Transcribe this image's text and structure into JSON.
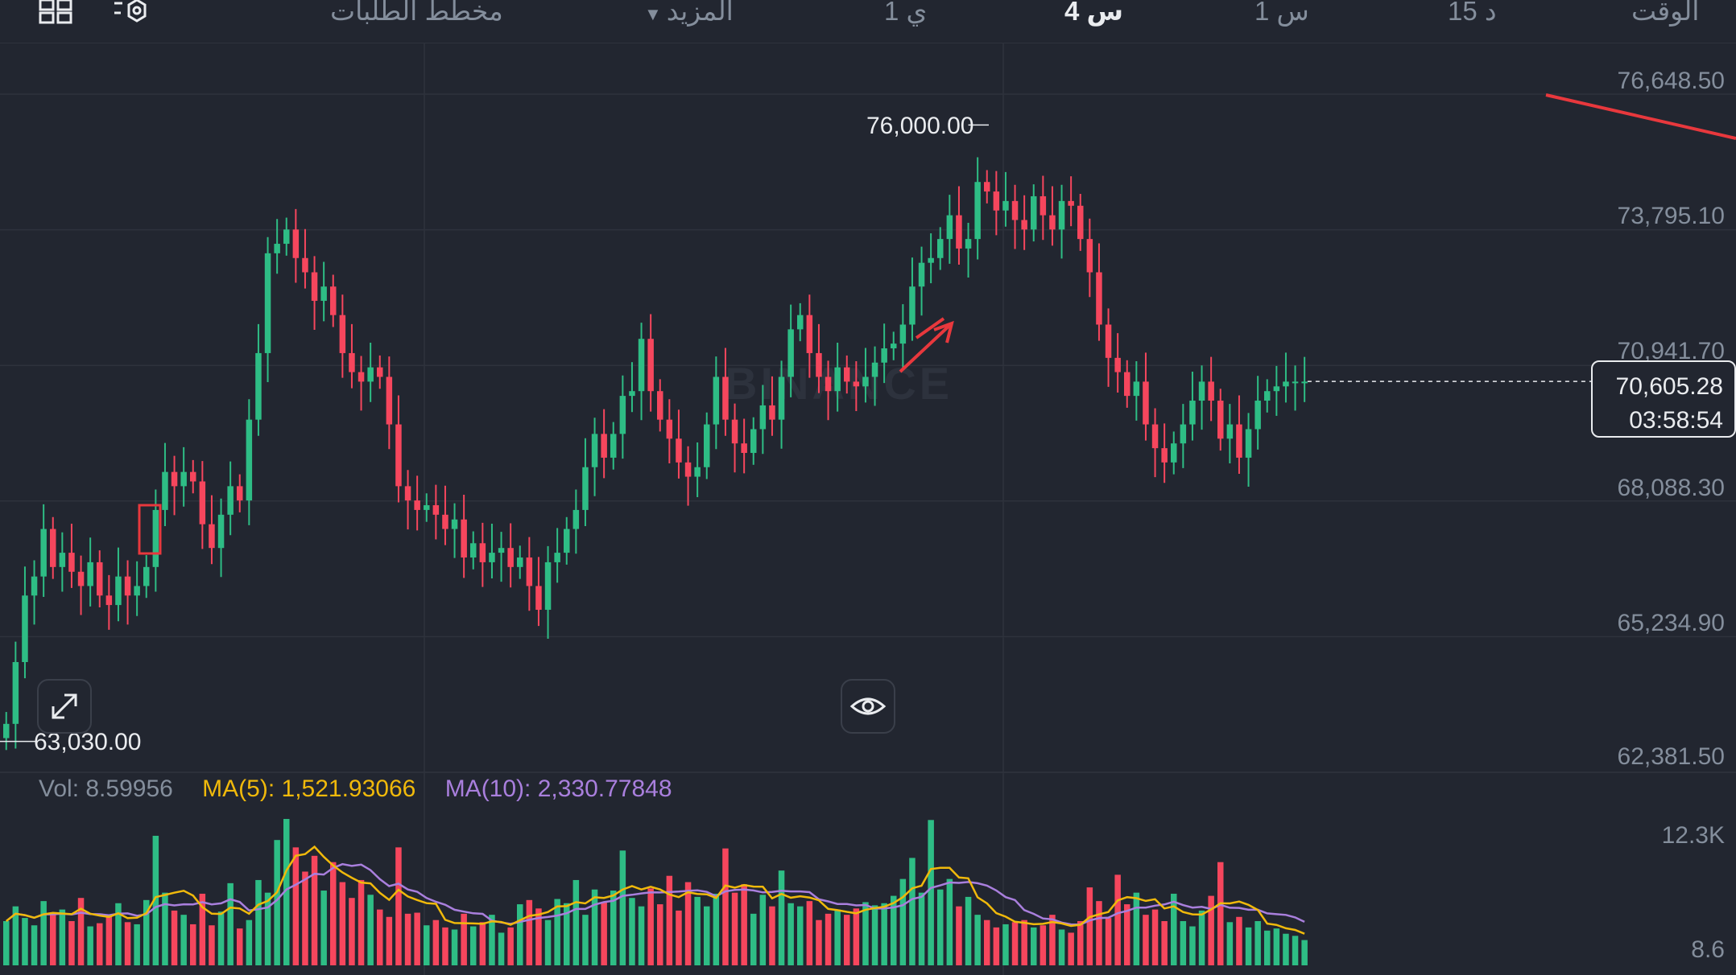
{
  "toolbar": {
    "intervals": [
      {
        "label": "الوقت",
        "active": false
      },
      {
        "label": "15 د",
        "active": false
      },
      {
        "label": "1 س",
        "active": false
      },
      {
        "label": "4 س",
        "active": true
      },
      {
        "label": "1 ي",
        "active": false
      }
    ],
    "more_label": "المزيد",
    "depth_label": "مخطط الطلبات",
    "icons": [
      "indicator-settings-icon",
      "layout-grid-icon"
    ]
  },
  "watermark": "BINANCE",
  "chart_data": {
    "type": "candlestick",
    "price_axis_ticks": [
      "76,648.50",
      "73,795.10",
      "70,941.70",
      "68,088.30",
      "65,234.90",
      "62,381.50"
    ],
    "price_axis_values": [
      76648.5,
      73795.1,
      70941.7,
      68088.3,
      65234.9,
      62381.5
    ],
    "current_price": "70,605.28",
    "countdown": "03:58:54",
    "high_annotation": "76,000.00",
    "low_annotation": "63,030.00",
    "closes": [
      63400,
      64700,
      66100,
      66500,
      67500,
      66700,
      67000,
      66600,
      66300,
      66800,
      66100,
      65900,
      66500,
      66100,
      66300,
      66700,
      67900,
      68700,
      68400,
      68700,
      68500,
      67600,
      67100,
      67800,
      68400,
      68100,
      69800,
      71200,
      73300,
      73500,
      73800,
      73200,
      72900,
      72300,
      72600,
      72000,
      71200,
      70800,
      70600,
      70900,
      70700,
      69700,
      68400,
      68100,
      67900,
      68000,
      67800,
      67500,
      67700,
      66900,
      67200,
      66800,
      67000,
      67100,
      66700,
      66900,
      66300,
      65800,
      66800,
      67000,
      67500,
      67900,
      68800,
      69500,
      69000,
      69500,
      70300,
      70400,
      71500,
      70400,
      69800,
      69400,
      68900,
      68600,
      68800,
      69700,
      70700,
      69800,
      69300,
      69100,
      69600,
      70100,
      69800,
      70700,
      71700,
      72000,
      71200,
      70700,
      70400,
      70900,
      70600,
      70500,
      70700,
      71000,
      71300,
      71400,
      71800,
      72600,
      73100,
      73200,
      73600,
      74100,
      73400,
      73600,
      74800,
      74600,
      74200,
      74400,
      74000,
      73800,
      74500,
      74100,
      73800,
      74400,
      74300,
      73600,
      72900,
      71800,
      71100,
      70800,
      70300,
      70600,
      69700,
      69200,
      68900,
      69300,
      69700,
      70200,
      70600,
      70200,
      69400,
      69700,
      69000,
      69600,
      70200,
      70400,
      70500,
      70600,
      70600,
      70600
    ]
  },
  "volume": {
    "vol_label": "Vol: 8.59956",
    "ma5_label": "MA(5): 1,521.93066",
    "ma10_label": "MA(10): 2,330.77848",
    "ticks": [
      "12.3K",
      "8.6"
    ],
    "volumes": [
      4200,
      5600,
      4500,
      3800,
      6100,
      4900,
      5300,
      4200,
      6400,
      3700,
      4000,
      4700,
      5900,
      4100,
      3900,
      6200,
      12300,
      6900,
      5200,
      4800,
      3900,
      6800,
      3800,
      5100,
      7800,
      3500,
      4300,
      8100,
      6900,
      11900,
      13900,
      11200,
      8900,
      10400,
      7100,
      9800,
      7900,
      6400,
      8100,
      6700,
      5300,
      4600,
      11200,
      4900,
      5000,
      3800,
      4300,
      3600,
      3400,
      4900,
      3700,
      4100,
      4800,
      3100,
      3600,
      5800,
      6200,
      5400,
      4300,
      6300,
      5900,
      8100,
      4800,
      7200,
      6000,
      7100,
      10900,
      6400,
      5600,
      7300,
      5800,
      8500,
      5200,
      7900,
      6500,
      5600,
      6800,
      11100,
      6900,
      7700,
      4900,
      6700,
      5600,
      9000,
      5900,
      5600,
      6100,
      4300,
      4900,
      5300,
      4800,
      5400,
      6000,
      5700,
      5900,
      6600,
      8200,
      10200,
      6900,
      13800,
      7200,
      8200,
      5600,
      6500,
      4800,
      4300,
      3600,
      3900,
      4100,
      4300,
      3600,
      3800,
      4800,
      3400,
      3100,
      4200,
      7400,
      6100,
      4500,
      8600,
      5800,
      6900,
      4800,
      5300,
      4200,
      6800,
      4200,
      3700,
      5200,
      6600,
      9800,
      4100,
      4600,
      3600,
      4200,
      3300,
      3500,
      3000,
      2800,
      2400
    ]
  },
  "colors": {
    "background": "#222630",
    "up": "#2ebd85",
    "down": "#f6465d",
    "grid": "#2e323c",
    "ma5": "#f0b90b",
    "ma10": "#a97fdd",
    "trendline": "#e8383d"
  },
  "buttons": {
    "expand": "expand-arrows-icon",
    "visibility": "eye-icon"
  }
}
